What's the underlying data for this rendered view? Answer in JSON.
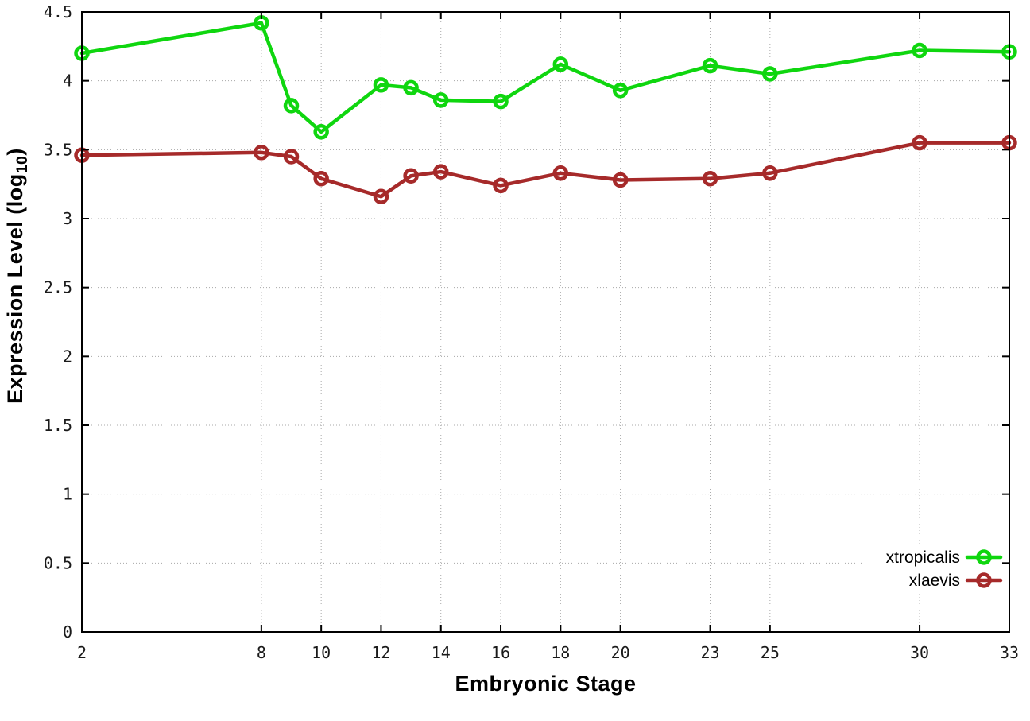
{
  "chart_data": {
    "type": "line",
    "title": "",
    "xlabel": "Embryonic Stage",
    "ylabel": "Expression Level (log10)",
    "ylabel_parts": {
      "prefix": "Expression Level (log",
      "sub": "10",
      "suffix": ")"
    },
    "x": [
      2,
      8,
      9,
      10,
      12,
      13,
      14,
      16,
      18,
      20,
      23,
      25,
      30,
      33
    ],
    "series": [
      {
        "name": "xtropicalis",
        "color": "#0fd60f",
        "values": [
          4.2,
          4.42,
          3.82,
          3.63,
          3.97,
          3.95,
          3.86,
          3.85,
          4.12,
          3.93,
          4.11,
          4.05,
          4.22,
          4.21
        ]
      },
      {
        "name": "xlaevis",
        "color": "#a62a2a",
        "values": [
          3.46,
          3.48,
          3.45,
          3.29,
          3.16,
          3.31,
          3.34,
          3.24,
          3.33,
          3.28,
          3.29,
          3.33,
          3.55,
          3.55
        ]
      }
    ],
    "xticks": [
      2,
      8,
      10,
      12,
      14,
      16,
      18,
      20,
      23,
      25,
      30,
      33
    ],
    "yticks": [
      0,
      0.5,
      1,
      1.5,
      2,
      2.5,
      3,
      3.5,
      4,
      4.5
    ],
    "xlim": [
      2,
      33
    ],
    "ylim": [
      0,
      4.5
    ],
    "grid": true,
    "grid_style": "dotted",
    "legend_position": "bottom-right",
    "legend_opaque": true,
    "marker": "open-circle",
    "axis_color": "#000000",
    "grid_color": "#a8a8a8",
    "background_color": "#ffffff"
  }
}
